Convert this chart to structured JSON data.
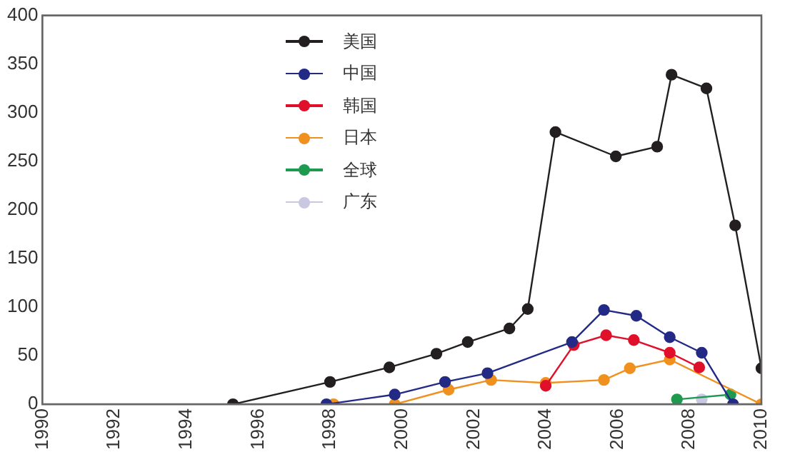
{
  "chart_data": {
    "type": "line",
    "xlim": [
      1990,
      2010
    ],
    "xticks": [
      1990,
      1992,
      1994,
      1996,
      1998,
      2000,
      2002,
      2004,
      2006,
      2008,
      2010
    ],
    "ylim": [
      0,
      400
    ],
    "yticks": [
      0,
      50,
      100,
      150,
      200,
      250,
      300,
      350,
      400
    ],
    "grid": false,
    "legend": "top left",
    "marker": "circle",
    "line_style": "solid",
    "series": [
      {
        "name": "美国",
        "color": "#231f20",
        "x": [
          1995.3,
          1998,
          1999.65,
          2000.96,
          2001.83,
          2002.99,
          2003.5,
          2004.27,
          2005.95,
          2007.1,
          2007.5,
          2008.47,
          2009.27,
          2010
        ],
        "values": [
          0,
          23,
          38,
          52,
          64,
          78,
          98,
          280,
          255,
          265,
          339,
          325,
          184,
          37
        ]
      },
      {
        "name": "中国",
        "color": "#232a86",
        "x": [
          1997.9,
          1999.8,
          2001.2,
          2002.38,
          2004.73,
          2005.62,
          2006.52,
          2007.45,
          2008.34,
          2009.21
        ],
        "values": [
          0,
          10,
          23,
          32,
          64,
          97,
          91,
          69,
          53,
          0
        ]
      },
      {
        "name": "韩国",
        "color": "#e0102a",
        "x": [
          2004,
          2004.78,
          2005.68,
          2006.45,
          2007.45,
          2008.27
        ],
        "values": [
          19,
          61,
          71,
          66,
          53,
          38
        ]
      },
      {
        "name": "日本",
        "color": "#f0901e",
        "x": [
          1998.1,
          1999.8,
          2001.3,
          2002.48,
          2004,
          2005.62,
          2006.34,
          2007.45,
          2010
        ],
        "values": [
          0,
          0,
          15,
          25,
          22,
          25,
          37,
          46,
          0
        ]
      },
      {
        "name": "全球",
        "color": "#1e9a50",
        "x": [
          2007.65,
          2009.14
        ],
        "values": [
          5,
          10
        ]
      },
      {
        "name": "广东",
        "color": "#c8c8e0",
        "x": [
          2008.34
        ],
        "values": [
          5
        ]
      }
    ]
  }
}
